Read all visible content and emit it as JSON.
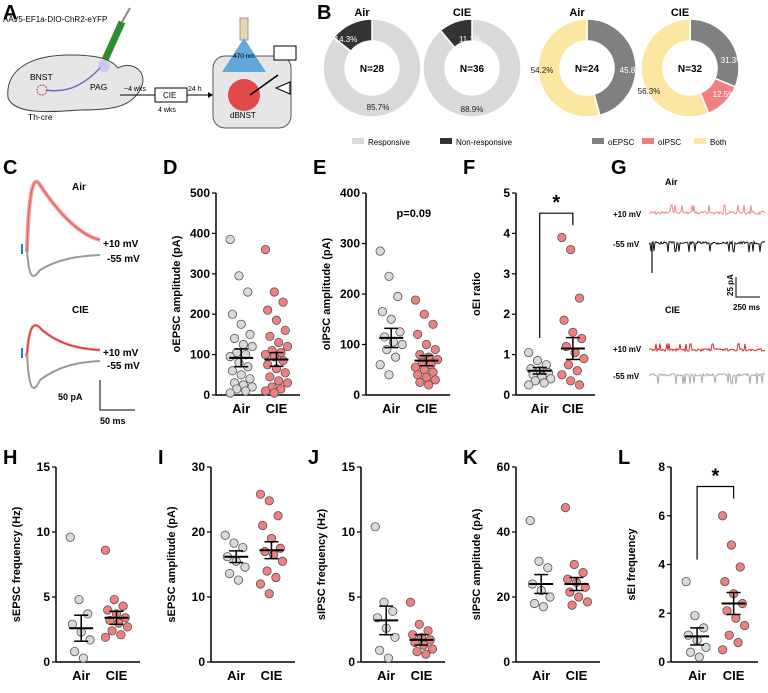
{
  "panels": {
    "A": {
      "label": "A",
      "virus": "AAV5-EF1a-DIO-ChR2-eYFP",
      "bnst": "BNST",
      "pag": "PAG",
      "thcre": "Th-cre",
      "wks1": "~4 wks",
      "cie": "CIE",
      "wks2": "4 wks",
      "h24": "24 h",
      "nm": "470 nm",
      "dbnst": "dBNST"
    },
    "B": {
      "label": "B",
      "colors": {
        "responsive": "#d9d9d9",
        "nonresponsive": "#333333",
        "oepsc": "#808080",
        "oipsc": "#f08080",
        "both": "#fbe7a1"
      },
      "donuts": [
        {
          "title": "Air",
          "center": "N=28",
          "labels": [
            "85.7%",
            "14.3%"
          ]
        },
        {
          "title": "CIE",
          "center": "N=36",
          "labels": [
            "88.9%",
            "11.1%"
          ]
        },
        {
          "title": "Air",
          "center": "N=24",
          "labels": [
            "45.8%",
            "54.2%"
          ]
        },
        {
          "title": "CIE",
          "center": "N=32",
          "labels": [
            "31.3%",
            "12.5%",
            "56.3%"
          ]
        }
      ],
      "legend1": [
        "Responsive",
        "Non-responsive"
      ],
      "legend2": [
        "oEPSC",
        "oIPSC",
        "Both"
      ]
    },
    "C": {
      "label": "C",
      "air": "Air",
      "cie": "CIE",
      "p10": "+10 mV",
      "m55": "-55 mV",
      "scale_y": "50 pA",
      "scale_x": "50 ms"
    },
    "G": {
      "label": "G",
      "air": "Air",
      "cie": "CIE",
      "p10": "+10 mV",
      "m55": "-55 mV",
      "scale_y": "25 pA",
      "scale_x": "250 ms"
    }
  },
  "chart_data": [
    {
      "id": "D",
      "type": "scatter",
      "ylabel": "oEPSC amplitude (pA)",
      "ylim": [
        0,
        500
      ],
      "yticks": [
        0,
        100,
        200,
        300,
        400,
        500
      ],
      "categories": [
        "Air",
        "CIE"
      ],
      "points": {
        "Air": [
          385,
          295,
          255,
          200,
          175,
          150,
          140,
          125,
          120,
          105,
          100,
          95,
          80,
          70,
          60,
          50,
          40,
          30,
          25,
          20,
          15,
          10,
          5
        ],
        "CIE": [
          360,
          255,
          230,
          210,
          185,
          160,
          145,
          130,
          120,
          110,
          105,
          100,
          95,
          85,
          75,
          65,
          55,
          45,
          35,
          30,
          20,
          15,
          10,
          5
        ]
      },
      "mean": [
        92,
        88
      ],
      "sem": [
        22,
        17
      ]
    },
    {
      "id": "E",
      "type": "scatter",
      "ylabel": "oIPSC amplitude (pA)",
      "ylim": [
        0,
        400
      ],
      "yticks": [
        0,
        100,
        200,
        300,
        400
      ],
      "categories": [
        "Air",
        "CIE"
      ],
      "annotation": "p=0.09",
      "points": {
        "Air": [
          285,
          235,
          195,
          165,
          150,
          125,
          115,
          105,
          100,
          90,
          75,
          60,
          40
        ],
        "CIE": [
          188,
          160,
          140,
          120,
          100,
          90,
          80,
          75,
          70,
          65,
          60,
          55,
          50,
          45,
          40,
          35,
          30,
          25,
          20
        ]
      },
      "mean": [
        113,
        68
      ],
      "sem": [
        19,
        10
      ]
    },
    {
      "id": "F",
      "type": "scatter",
      "ylabel": "oEI ratio",
      "ylim": [
        0,
        5
      ],
      "yticks": [
        0,
        1,
        2,
        3,
        4,
        5
      ],
      "categories": [
        "Air",
        "CIE"
      ],
      "annotation": "*",
      "points": {
        "Air": [
          1.05,
          0.85,
          0.75,
          0.65,
          0.6,
          0.55,
          0.5,
          0.45,
          0.4,
          0.35,
          0.3,
          0.25
        ],
        "CIE": [
          3.9,
          3.6,
          2.4,
          1.85,
          1.55,
          1.4,
          1.2,
          1.05,
          0.9,
          0.75,
          0.6,
          0.5,
          0.35,
          0.25
        ]
      },
      "mean": [
        0.6,
        1.15
      ],
      "sem": [
        0.08,
        0.27
      ]
    },
    {
      "id": "H",
      "type": "scatter",
      "ylabel": "sEPSC frequency (Hz)",
      "ylim": [
        0,
        15
      ],
      "yticks": [
        0,
        5,
        10,
        15
      ],
      "categories": [
        "Air",
        "CIE"
      ],
      "points": {
        "Air": [
          9.6,
          4.8,
          3.7,
          2.9,
          2.3,
          1.7,
          0.8,
          0.3
        ],
        "CIE": [
          8.6,
          4.8,
          4.3,
          4.0,
          3.7,
          3.4,
          3.2,
          3.0,
          2.7,
          2.4,
          2.1,
          1.9
        ]
      },
      "mean": [
        2.6,
        3.4
      ],
      "sem": [
        1.0,
        0.5
      ]
    },
    {
      "id": "I",
      "type": "scatter",
      "ylabel": "sEPSC amplitude (pA)",
      "ylim": [
        0,
        30
      ],
      "yticks": [
        0,
        10,
        20,
        30
      ],
      "categories": [
        "Air",
        "CIE"
      ],
      "points": {
        "Air": [
          19.5,
          18.3,
          17.6,
          16.2,
          15.5,
          14.6,
          13.6,
          12.6
        ],
        "CIE": [
          25.8,
          24.8,
          22.5,
          21.0,
          19.0,
          17.5,
          17.0,
          16.5,
          15.5,
          14.0,
          13.0,
          12.0,
          10.5
        ]
      },
      "mean": [
        16.2,
        17.2
      ],
      "sem": [
        0.9,
        1.3
      ]
    },
    {
      "id": "J",
      "type": "scatter",
      "ylabel": "sIPSC frequency (Hz)",
      "ylim": [
        0,
        15
      ],
      "yticks": [
        0,
        5,
        10,
        15
      ],
      "categories": [
        "Air",
        "CIE"
      ],
      "points": {
        "Air": [
          10.4,
          4.6,
          3.9,
          3.4,
          2.6,
          1.9,
          0.9,
          0.3
        ],
        "CIE": [
          4.6,
          2.9,
          2.4,
          2.1,
          1.9,
          1.7,
          1.5,
          1.3,
          1.0,
          0.8,
          0.6
        ]
      },
      "mean": [
        3.2,
        1.7
      ],
      "sem": [
        1.1,
        0.4
      ]
    },
    {
      "id": "K",
      "type": "scatter",
      "ylabel": "sIPSC amplitude (pA)",
      "ylim": [
        0,
        60
      ],
      "yticks": [
        0,
        20,
        40,
        60
      ],
      "categories": [
        "Air",
        "CIE"
      ],
      "points": {
        "Air": [
          43.5,
          31.0,
          29.0,
          24.0,
          22.0,
          20.0,
          18.0,
          17.0
        ],
        "CIE": [
          47.5,
          30.0,
          27.5,
          25.5,
          24.5,
          23.0,
          21.5,
          20.0,
          18.5,
          17.5
        ]
      },
      "mean": [
        24.0,
        24.0
      ],
      "sem": [
        2.9,
        2.0
      ]
    },
    {
      "id": "L",
      "type": "scatter",
      "ylabel": "sEI frequency",
      "ylim": [
        0,
        8
      ],
      "yticks": [
        0,
        2,
        4,
        6,
        8
      ],
      "categories": [
        "Air",
        "CIE"
      ],
      "annotation": "*",
      "points": {
        "Air": [
          3.3,
          1.9,
          1.4,
          1.1,
          0.9,
          0.6,
          0.4,
          0.2
        ],
        "CIE": [
          6.0,
          4.8,
          3.9,
          3.3,
          2.8,
          2.4,
          2.1,
          1.8,
          1.5,
          1.1,
          0.8,
          0.5
        ]
      },
      "mean": [
        1.05,
        2.4
      ],
      "sem": [
        0.35,
        0.45
      ]
    }
  ]
}
